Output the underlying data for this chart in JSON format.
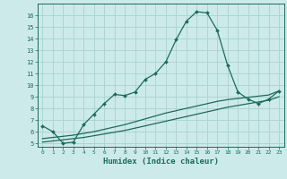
{
  "xlabel": "Humidex (Indice chaleur)",
  "background_color": "#cdeaea",
  "grid_color": "#aed4d4",
  "line_color": "#1a6b5a",
  "xlim": [
    -0.5,
    23.5
  ],
  "ylim": [
    4.7,
    17.0
  ],
  "yticks": [
    5,
    6,
    7,
    8,
    9,
    10,
    11,
    12,
    13,
    14,
    15,
    16
  ],
  "xticks": [
    0,
    1,
    2,
    3,
    4,
    5,
    6,
    7,
    8,
    9,
    10,
    11,
    12,
    13,
    14,
    15,
    16,
    17,
    18,
    19,
    20,
    21,
    22,
    23
  ],
  "line1_x": [
    0,
    1,
    2,
    3,
    4,
    5,
    6,
    7,
    8,
    9,
    10,
    11,
    12,
    13,
    14,
    15,
    16,
    17,
    18,
    19,
    20,
    21,
    22,
    23
  ],
  "line1_y": [
    6.5,
    6.0,
    5.0,
    5.1,
    6.6,
    7.5,
    8.4,
    9.2,
    9.1,
    9.4,
    10.5,
    11.0,
    12.0,
    13.9,
    15.5,
    16.3,
    16.2,
    14.7,
    11.7,
    9.4,
    8.8,
    8.4,
    8.8,
    9.5
  ],
  "line2_x": [
    0,
    1,
    2,
    3,
    4,
    5,
    6,
    7,
    8,
    9,
    10,
    11,
    12,
    13,
    14,
    15,
    16,
    17,
    18,
    19,
    20,
    21,
    22,
    23
  ],
  "line2_y": [
    5.1,
    5.2,
    5.3,
    5.4,
    5.5,
    5.65,
    5.8,
    5.95,
    6.1,
    6.3,
    6.5,
    6.7,
    6.9,
    7.1,
    7.3,
    7.5,
    7.7,
    7.9,
    8.1,
    8.25,
    8.4,
    8.55,
    8.7,
    9.0
  ],
  "line3_x": [
    0,
    1,
    2,
    3,
    4,
    5,
    6,
    7,
    8,
    9,
    10,
    11,
    12,
    13,
    14,
    15,
    16,
    17,
    18,
    19,
    20,
    21,
    22,
    23
  ],
  "line3_y": [
    5.4,
    5.5,
    5.6,
    5.7,
    5.85,
    6.0,
    6.2,
    6.4,
    6.6,
    6.85,
    7.1,
    7.35,
    7.6,
    7.8,
    8.0,
    8.2,
    8.4,
    8.6,
    8.75,
    8.85,
    8.95,
    9.05,
    9.15,
    9.5
  ]
}
